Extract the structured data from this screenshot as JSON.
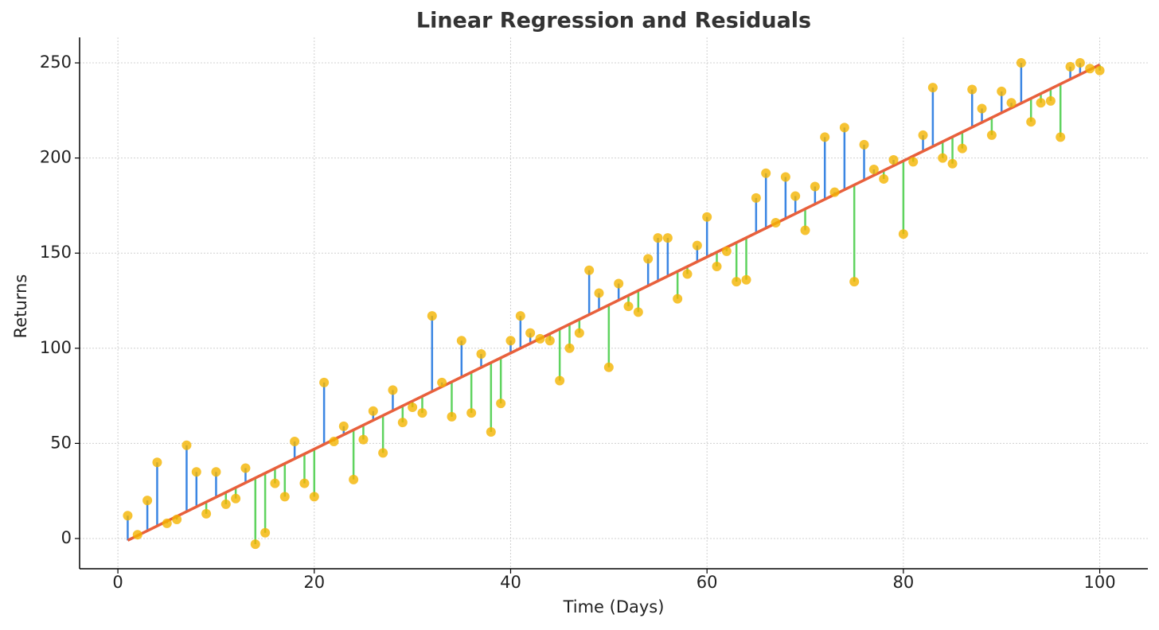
{
  "chart_data": {
    "type": "scatter",
    "title": "Linear Regression and Residuals",
    "xlabel": "Time (Days)",
    "ylabel": "Returns",
    "x": [
      1,
      2,
      3,
      4,
      5,
      6,
      7,
      8,
      9,
      10,
      11,
      12,
      13,
      14,
      15,
      16,
      17,
      18,
      19,
      20,
      21,
      22,
      23,
      24,
      25,
      26,
      27,
      28,
      29,
      30,
      31,
      32,
      33,
      34,
      35,
      36,
      37,
      38,
      39,
      40,
      41,
      42,
      43,
      44,
      45,
      46,
      47,
      48,
      49,
      50,
      51,
      52,
      53,
      54,
      55,
      56,
      57,
      58,
      59,
      60,
      61,
      62,
      63,
      64,
      65,
      66,
      67,
      68,
      69,
      70,
      71,
      72,
      73,
      74,
      75,
      76,
      77,
      78,
      79,
      80,
      81,
      82,
      83,
      84,
      85,
      86,
      87,
      88,
      89,
      90,
      91,
      92,
      93,
      94,
      95,
      96,
      97,
      98,
      99,
      100
    ],
    "points": {
      "color": "#f4b400",
      "values": [
        12,
        2,
        20,
        40,
        8,
        10,
        49,
        35,
        13,
        35,
        18,
        21,
        37,
        -3,
        3,
        29,
        22,
        51,
        29,
        22,
        82,
        51,
        59,
        31,
        52,
        67,
        45,
        78,
        61,
        69,
        66,
        117,
        82,
        64,
        104,
        66,
        97,
        56,
        71,
        104,
        117,
        108,
        105,
        104,
        83,
        100,
        108,
        141,
        129,
        90,
        134,
        122,
        119,
        147,
        158,
        158,
        126,
        139,
        154,
        169,
        143,
        151,
        135,
        136,
        179,
        192,
        166,
        190,
        180,
        162,
        185,
        211,
        182,
        216,
        135,
        207,
        194,
        189,
        199,
        160,
        198,
        212,
        237,
        200,
        197,
        205,
        236,
        226,
        212,
        235,
        229,
        250,
        219,
        229,
        230,
        211,
        248,
        250,
        247,
        246
      ]
    },
    "fit": {
      "x": [
        1,
        100
      ],
      "values": [
        -1,
        249
      ],
      "color": "#e8603c"
    },
    "residual_colors": {
      "positive": "#3b86e3",
      "negative": "#5fd35f"
    },
    "xlim": [
      -3.9,
      104.9
    ],
    "ylim": [
      -15.9,
      263.4
    ],
    "xticks": [
      0,
      20,
      40,
      60,
      80,
      100
    ],
    "yticks": [
      0,
      50,
      100,
      150,
      200,
      250
    ],
    "grid": true
  }
}
